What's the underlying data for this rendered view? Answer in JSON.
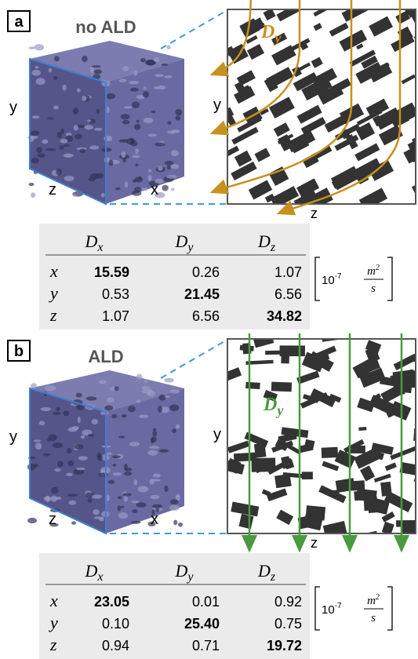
{
  "panels": [
    {
      "label": "a",
      "title": "no ALD",
      "cube_axis_labels": [
        "y",
        "z",
        "x"
      ],
      "slice_axis_labels": [
        "y",
        "z"
      ],
      "flow": {
        "symbol": "D",
        "sub": "y",
        "color": "#c8901e"
      },
      "table": {
        "columns": [
          {
            "symbol": "D",
            "sub": "x"
          },
          {
            "symbol": "D",
            "sub": "y"
          },
          {
            "symbol": "D",
            "sub": "z"
          }
        ],
        "rows": [
          {
            "label": "x",
            "cells": [
              "15.59",
              "0.26",
              "1.07"
            ]
          },
          {
            "label": "y",
            "cells": [
              "0.53",
              "21.45",
              "6.56"
            ]
          },
          {
            "label": "z",
            "cells": [
              "1.07",
              "6.56",
              "34.82"
            ]
          }
        ]
      },
      "unit": {
        "base": "10",
        "exponent": "-7",
        "numerator": "m",
        "numerator_exponent": "2",
        "denominator": "s"
      }
    },
    {
      "label": "b",
      "title": "ALD",
      "cube_axis_labels": [
        "y",
        "z",
        "x"
      ],
      "slice_axis_labels": [
        "y",
        "z"
      ],
      "flow": {
        "symbol": "D",
        "sub": "y",
        "color": "#4a9a3e"
      },
      "table": {
        "columns": [
          {
            "symbol": "D",
            "sub": "x"
          },
          {
            "symbol": "D",
            "sub": "y"
          },
          {
            "symbol": "D",
            "sub": "z"
          }
        ],
        "rows": [
          {
            "label": "x",
            "cells": [
              "23.05",
              "0.01",
              "0.92"
            ]
          },
          {
            "label": "y",
            "cells": [
              "0.10",
              "25.40",
              "0.75"
            ]
          },
          {
            "label": "z",
            "cells": [
              "0.94",
              "0.71",
              "19.72"
            ]
          }
        ]
      },
      "unit": {
        "base": "10",
        "exponent": "-7",
        "numerator": "m",
        "numerator_exponent": "2",
        "denominator": "s"
      }
    }
  ]
}
